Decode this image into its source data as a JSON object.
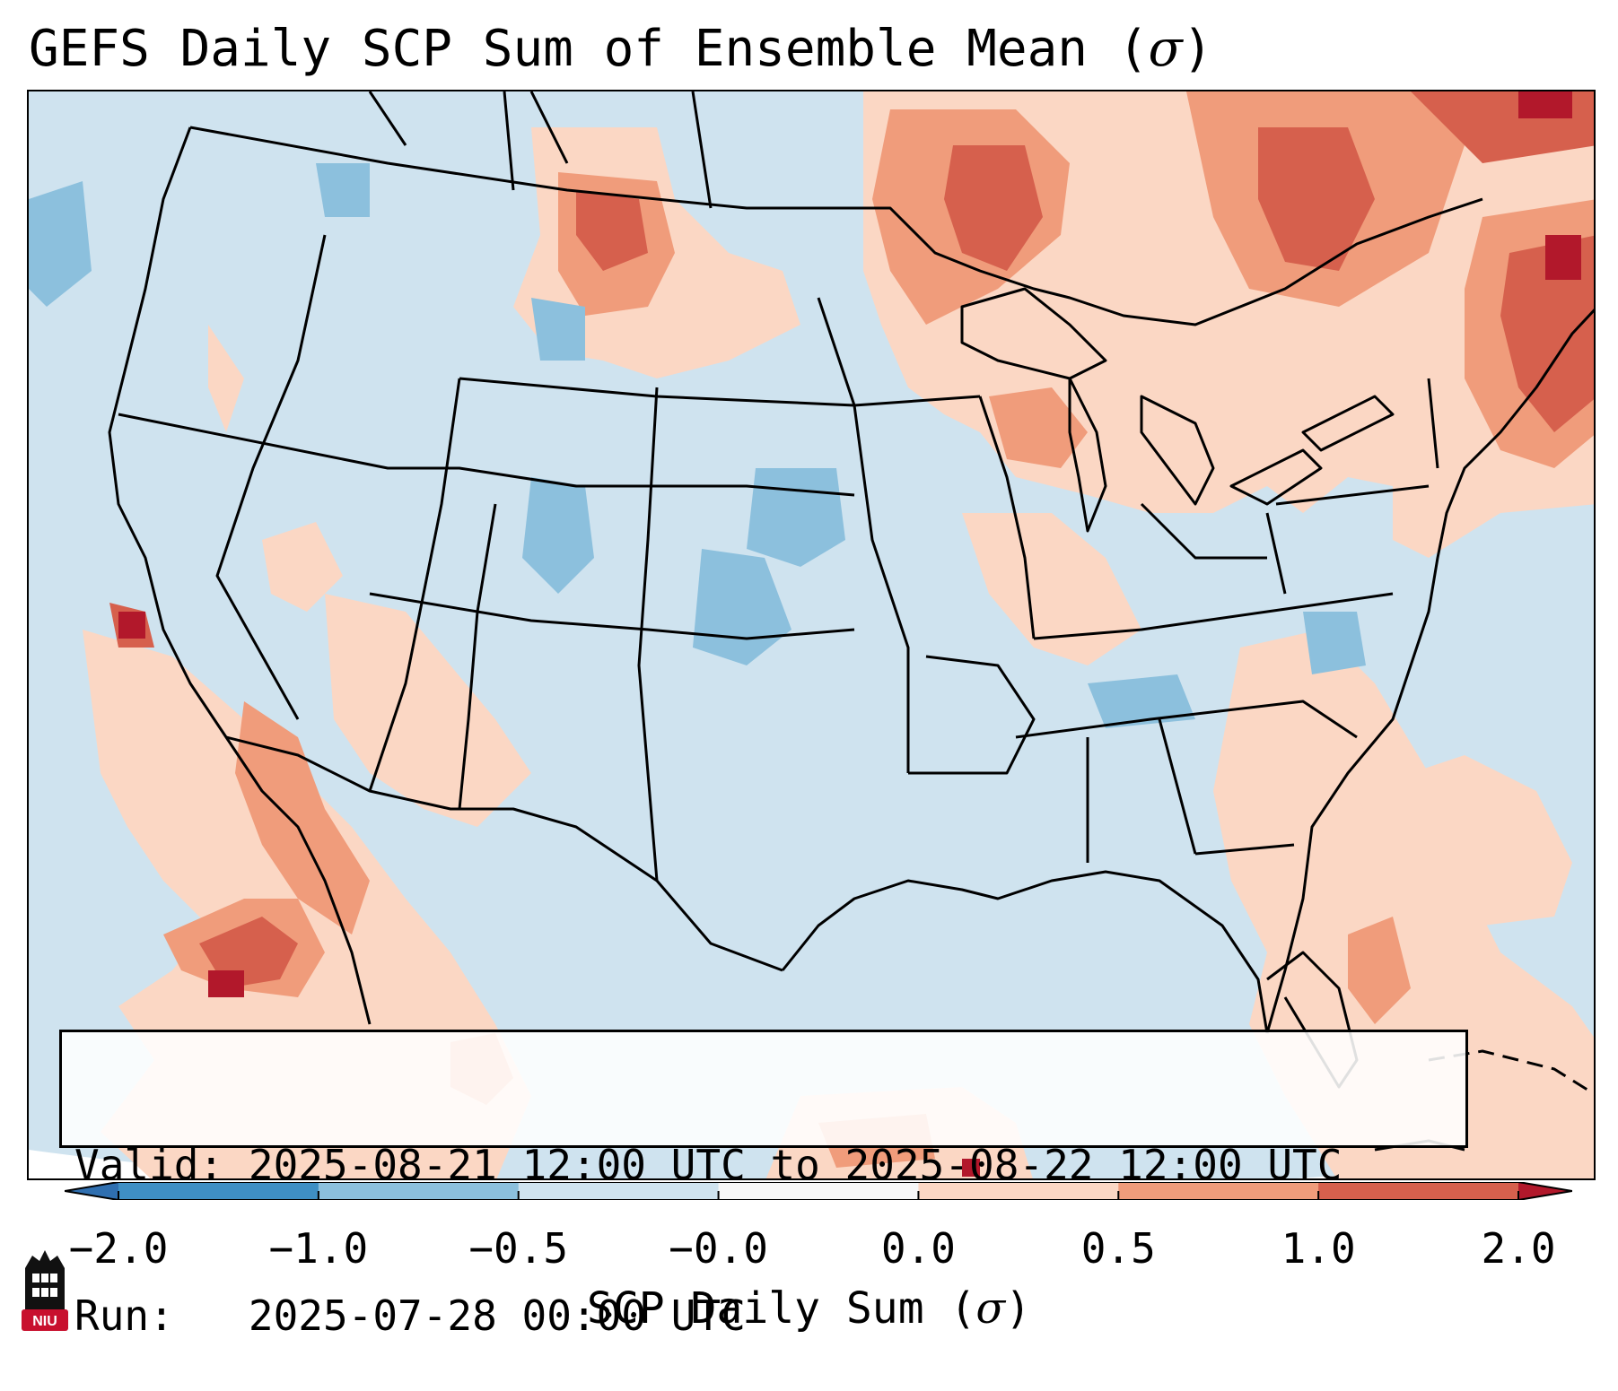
{
  "title": {
    "main": "GEFS Daily SCP Sum of Ensemble Mean (",
    "symbol": "σ",
    "close": ")"
  },
  "info": {
    "valid_label": "Valid:",
    "valid_value": "2025-08-21 12:00 UTC to 2025-08-22 12:00 UTC",
    "run_label": "Run:",
    "run_value": "2025-07-28 00:00 UTC"
  },
  "colorbar": {
    "label_main": "SCP Daily Sum (",
    "label_symbol": "σ",
    "label_close": ")",
    "ticks": [
      "−2.0",
      "−1.0",
      "−0.5",
      "−0.0",
      "0.0",
      "0.5",
      "1.0",
      "2.0"
    ],
    "bins": [
      {
        "from": "−2.0",
        "to": "−1.0",
        "color": "#3f8fc4"
      },
      {
        "from": "−1.0",
        "to": "−0.5",
        "color": "#8cc0dd"
      },
      {
        "from": "−0.5",
        "to": "−0.0",
        "color": "#cfe3ef"
      },
      {
        "from": "−0.0",
        "to": "0.0",
        "color": "#f7f7f7"
      },
      {
        "from": "0.0",
        "to": "0.5",
        "color": "#fbd7c4"
      },
      {
        "from": "0.5",
        "to": "1.0",
        "color": "#f09c7b"
      },
      {
        "from": "1.0",
        "to": "2.0",
        "color": "#d6604d"
      }
    ],
    "under_color": "#2f6fb0",
    "over_color": "#b2182b"
  },
  "logo": {
    "text": "NIU",
    "color": "#c8102e"
  }
}
